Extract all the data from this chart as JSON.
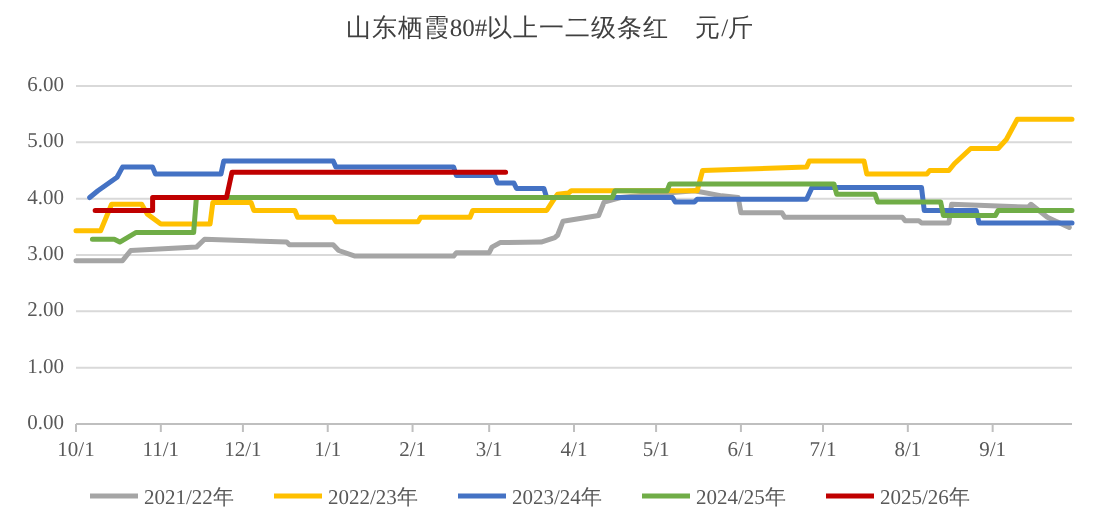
{
  "chart_data": {
    "type": "line",
    "title": "山东栖霞80#以上一二级条红　元/斤",
    "xlim": [
      "2025-10-01",
      "2026-09-30"
    ],
    "ylim": [
      0,
      6
    ],
    "xticks": [
      {
        "value": "2025-10-01",
        "label": "10/1"
      },
      {
        "value": "2025-11-01",
        "label": "11/1"
      },
      {
        "value": "2025-12-01",
        "label": "12/1"
      },
      {
        "value": "2026-01-01",
        "label": "1/1"
      },
      {
        "value": "2026-02-01",
        "label": "2/1"
      },
      {
        "value": "2026-03-01",
        "label": "3/1"
      },
      {
        "value": "2026-04-01",
        "label": "4/1"
      },
      {
        "value": "2026-05-01",
        "label": "5/1"
      },
      {
        "value": "2026-06-01",
        "label": "6/1"
      },
      {
        "value": "2026-07-01",
        "label": "7/1"
      },
      {
        "value": "2026-08-01",
        "label": "8/1"
      },
      {
        "value": "2026-09-01",
        "label": "9/1"
      }
    ],
    "yticks": [
      {
        "value": 0,
        "label": "0.00"
      },
      {
        "value": 1,
        "label": "1.00"
      },
      {
        "value": 2,
        "label": "2.00"
      },
      {
        "value": 3,
        "label": "3.00"
      },
      {
        "value": 4,
        "label": "4.00"
      },
      {
        "value": 5,
        "label": "5.00"
      },
      {
        "value": 6,
        "label": "6.00"
      }
    ],
    "grid": "y",
    "legend": "bottom",
    "marker": "none",
    "line_style": "solid",
    "series": [
      {
        "name": "2021/22年",
        "color": "#a5a5a5",
        "x": [
          "2025-10-01",
          "2025-10-18",
          "2025-10-21",
          "2025-11-14",
          "2025-11-17",
          "2025-12-17",
          "2025-12-18",
          "2026-01-03",
          "2026-01-05",
          "2026-01-11",
          "2026-01-12",
          "2026-02-16",
          "2026-02-17",
          "2026-03-01",
          "2026-03-02",
          "2026-03-05",
          "2026-03-20",
          "2026-03-25",
          "2026-03-26",
          "2026-03-28",
          "2026-04-10",
          "2026-04-12",
          "2026-04-18",
          "2026-05-05",
          "2026-05-15",
          "2026-05-25",
          "2026-05-31",
          "2026-06-01",
          "2026-06-16",
          "2026-06-17",
          "2026-07-30",
          "2026-07-31",
          "2026-08-05",
          "2026-08-06",
          "2026-08-16",
          "2026-08-17",
          "2026-09-14",
          "2026-09-15",
          "2026-09-21",
          "2026-09-29"
        ],
        "values": [
          2.9,
          2.9,
          3.08,
          3.14,
          3.28,
          3.23,
          3.18,
          3.18,
          3.08,
          2.98,
          2.98,
          2.98,
          3.04,
          3.04,
          3.14,
          3.22,
          3.23,
          3.31,
          3.35,
          3.6,
          3.7,
          3.94,
          4.02,
          4.1,
          4.14,
          4.05,
          4.02,
          3.75,
          3.75,
          3.67,
          3.67,
          3.61,
          3.61,
          3.57,
          3.57,
          3.9,
          3.85,
          3.9,
          3.67,
          3.49
        ]
      },
      {
        "name": "2022/23年",
        "color": "#ffc000",
        "x": [
          "2025-10-01",
          "2025-10-10",
          "2025-10-14",
          "2025-10-25",
          "2025-10-27",
          "2025-11-01",
          "2025-11-19",
          "2025-11-20",
          "2025-12-04",
          "2025-12-05",
          "2025-12-20",
          "2025-12-21",
          "2026-01-03",
          "2026-01-04",
          "2026-02-03",
          "2026-02-04",
          "2026-02-22",
          "2026-02-23",
          "2026-03-22",
          "2026-03-24",
          "2026-03-26",
          "2026-03-30",
          "2026-03-31",
          "2026-05-16",
          "2026-05-18",
          "2026-06-25",
          "2026-06-26",
          "2026-07-16",
          "2026-07-17",
          "2026-08-08",
          "2026-08-09",
          "2026-08-16",
          "2026-08-18",
          "2026-08-24",
          "2026-09-03",
          "2026-09-06",
          "2026-09-10",
          "2026-09-30"
        ],
        "values": [
          3.43,
          3.43,
          3.9,
          3.9,
          3.73,
          3.55,
          3.55,
          3.93,
          3.93,
          3.79,
          3.79,
          3.67,
          3.67,
          3.59,
          3.59,
          3.67,
          3.67,
          3.79,
          3.79,
          3.94,
          4.08,
          4.1,
          4.14,
          4.14,
          4.5,
          4.56,
          4.67,
          4.67,
          4.44,
          4.44,
          4.5,
          4.5,
          4.62,
          4.89,
          4.89,
          5.05,
          5.41,
          5.41
        ]
      },
      {
        "name": "2023/24年",
        "color": "#4472c4",
        "x": [
          "2025-10-06",
          "2025-10-09",
          "2025-10-16",
          "2025-10-18",
          "2025-10-29",
          "2025-10-30",
          "2025-11-23",
          "2025-11-24",
          "2026-01-03",
          "2026-01-04",
          "2026-02-16",
          "2026-02-17",
          "2026-03-03",
          "2026-03-04",
          "2026-03-10",
          "2026-03-11",
          "2026-03-21",
          "2026-03-22",
          "2026-05-07",
          "2026-05-08",
          "2026-05-15",
          "2026-05-16",
          "2026-06-25",
          "2026-06-27",
          "2026-08-06",
          "2026-08-07",
          "2026-08-26",
          "2026-08-27",
          "2026-09-30"
        ],
        "values": [
          4.02,
          4.14,
          4.38,
          4.56,
          4.56,
          4.44,
          4.44,
          4.67,
          4.67,
          4.56,
          4.56,
          4.41,
          4.41,
          4.28,
          4.28,
          4.18,
          4.18,
          4.02,
          4.02,
          3.94,
          3.94,
          3.99,
          3.99,
          4.2,
          4.2,
          3.79,
          3.79,
          3.57,
          3.57
        ]
      },
      {
        "name": "2024/25年",
        "color": "#70ad47",
        "x": [
          "2025-10-07",
          "2025-10-15",
          "2025-10-17",
          "2025-10-23",
          "2025-11-13",
          "2025-11-14",
          "2026-04-15",
          "2026-04-16",
          "2026-05-05",
          "2026-05-06",
          "2026-07-05",
          "2026-07-06",
          "2026-07-20",
          "2026-07-21",
          "2026-08-13",
          "2026-08-14",
          "2026-09-02",
          "2026-09-03",
          "2026-09-30"
        ],
        "values": [
          3.28,
          3.28,
          3.23,
          3.4,
          3.4,
          4.02,
          4.02,
          4.14,
          4.14,
          4.26,
          4.26,
          4.08,
          4.08,
          3.94,
          3.94,
          3.7,
          3.7,
          3.79,
          3.79
        ]
      },
      {
        "name": "2025/26年",
        "color": "#c00000",
        "x": [
          "2025-10-08",
          "2025-10-29",
          "2025-10-29",
          "2025-11-25",
          "2025-11-27",
          "2026-03-07"
        ],
        "values": [
          3.79,
          3.79,
          4.02,
          4.02,
          4.47,
          4.47
        ]
      }
    ]
  }
}
